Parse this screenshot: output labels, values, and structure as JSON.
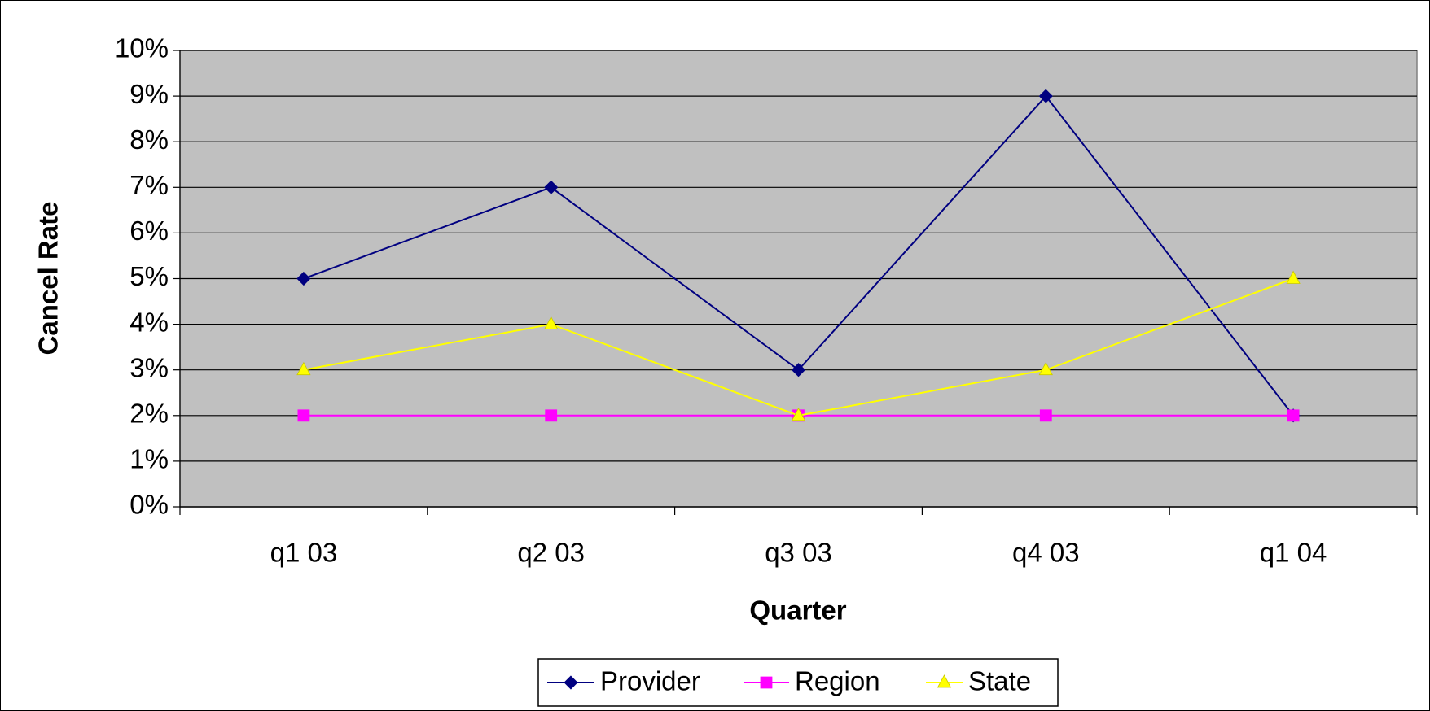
{
  "chart_data": {
    "type": "line",
    "xlabel": "Quarter",
    "ylabel": "Cancel Rate",
    "categories": [
      "q1 03",
      "q2 03",
      "q3 03",
      "q4 03",
      "q1 04"
    ],
    "series": [
      {
        "name": "Provider",
        "color": "#000080",
        "marker": "diamond",
        "values": [
          5,
          7,
          3,
          9,
          2
        ]
      },
      {
        "name": "Region",
        "color": "#FF00FF",
        "marker": "square",
        "values": [
          2,
          2,
          2,
          2,
          2
        ]
      },
      {
        "name": "State",
        "color": "#FFFF00",
        "marker": "triangle",
        "values": [
          3,
          4,
          2,
          3,
          5
        ]
      }
    ],
    "ylim": [
      0,
      10
    ],
    "yticks": [
      {
        "value": 0,
        "label": "0%"
      },
      {
        "value": 1,
        "label": "1%"
      },
      {
        "value": 2,
        "label": "2%"
      },
      {
        "value": 3,
        "label": "3%"
      },
      {
        "value": 4,
        "label": "4%"
      },
      {
        "value": 5,
        "label": "5%"
      },
      {
        "value": 6,
        "label": "6%"
      },
      {
        "value": 7,
        "label": "7%"
      },
      {
        "value": 8,
        "label": "8%"
      },
      {
        "value": 9,
        "label": "9%"
      },
      {
        "value": 10,
        "label": "10%"
      }
    ],
    "grid": true,
    "legend": "bottom",
    "plot_background": "#C0C0C0"
  }
}
